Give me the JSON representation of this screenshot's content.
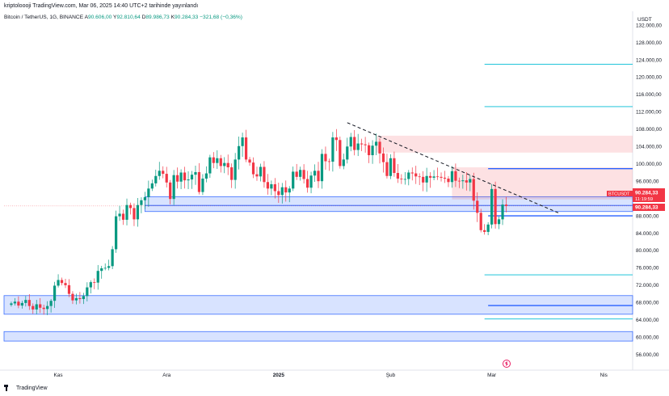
{
  "header": {
    "published_line": "kriptoloooji TradingView.com, Mar 06, 2025 14:40 UTC+2 tarihinde yayınlandı"
  },
  "symbol": {
    "name": "Bitcoin / TetherUS, 1G, BINANCE",
    "open_label": "A",
    "open": "90.606,00",
    "high_label": "Y",
    "high": "92.810,64",
    "low_label": "D",
    "low": "89.986,73",
    "close_label": "K",
    "close": "90.284,33",
    "change": "−321,68 (−0,36%)"
  },
  "axis": {
    "currency": "USDT"
  },
  "price_tags": {
    "ticker_label": "BTCUSDT",
    "ticker_price": "90.284,33",
    "countdown": "11:19:59",
    "last_price": "90.284,33"
  },
  "brand": {
    "name": "TradingView"
  },
  "colors": {
    "up": "#089981",
    "down": "#f23645",
    "zone_blue": "#2962ff",
    "zone_red": "#f23645",
    "line_cyan": "#00bcd4",
    "trend": "#131722"
  },
  "chart_data": {
    "type": "candlestick",
    "y_ticks": [
      56000,
      60000,
      64000,
      68000,
      72000,
      76000,
      80000,
      84000,
      88000,
      92000,
      96000,
      100000,
      104000,
      108000,
      112000,
      116000,
      120000,
      124000,
      128000,
      132000
    ],
    "y_tick_labels": [
      "56.000,00",
      "60.000,00",
      "64.000,00",
      "68.000,00",
      "72.000,00",
      "76.000,00",
      "80.000,00",
      "84.000,00",
      "88.000,00",
      "92.000,00",
      "96.000,00",
      "100.000,00",
      "104.000,00",
      "108.000,00",
      "112.000,00",
      "116.000,00",
      "120.000,00",
      "124.000,00",
      "128.000,00",
      "132.000,00"
    ],
    "ylim": [
      52400,
      135200
    ],
    "x_ticks": [
      {
        "label": "Kas",
        "date": "2024-11-01"
      },
      {
        "label": "Ara",
        "date": "2024-12-01"
      },
      {
        "label": "2025",
        "date": "2025-01-01"
      },
      {
        "label": "Şub",
        "date": "2025-02-01"
      },
      {
        "label": "Mar",
        "date": "2025-03-01"
      },
      {
        "label": "Nis",
        "date": "2025-04-01"
      }
    ],
    "xlim": [
      "2024-10-17",
      "2025-04-09"
    ],
    "closes": [
      67800,
      68200,
      67300,
      67900,
      68600,
      67200,
      66400,
      67600,
      66800,
      66500,
      67200,
      68400,
      71900,
      73200,
      72500,
      72000,
      70000,
      68500,
      69000,
      68800,
      69500,
      71500,
      72700,
      72600,
      75300,
      75900,
      76000,
      76400,
      80300,
      87900,
      88500,
      87100,
      90500,
      89800,
      87200,
      90500,
      91600,
      92300,
      94300,
      95500,
      97200,
      98400,
      97700,
      95700,
      91900,
      97400,
      95900,
      98000,
      96200,
      96400,
      97500,
      98100,
      93500,
      96600,
      97800,
      101500,
      100200,
      101300,
      99500,
      100200,
      99200,
      96300,
      101000,
      104100,
      106100,
      101000,
      100300,
      97600,
      97100,
      99300,
      95800,
      94300,
      95300,
      93700,
      92800,
      94600,
      93400,
      94300,
      98200,
      97000,
      98600,
      96500,
      94500,
      97300,
      98400,
      96000,
      102300,
      100600,
      100500,
      106100,
      105500,
      99500,
      101000,
      104000,
      106200,
      103200,
      104700,
      104500,
      104300,
      102000,
      104200,
      105100,
      102400,
      100400,
      97200,
      101300,
      97900,
      96600,
      96500,
      96500,
      98000,
      97800,
      97100,
      97000,
      95700,
      97200,
      96800,
      97100,
      97000,
      96800,
      96600,
      95800,
      98300,
      96100,
      96000,
      96200,
      95700,
      96500,
      91500,
      88700,
      84700,
      84300,
      86000,
      94200,
      86100,
      87200,
      90600,
      90300
    ],
    "trendline": [
      {
        "date": "2025-01-20",
        "price": 109500
      },
      {
        "date": "2025-03-20",
        "price": 88500
      }
    ],
    "zones": [
      {
        "kind": "support",
        "color": "blue",
        "from": "2024-11-25",
        "price_low": 90400,
        "price_high": 92400
      },
      {
        "kind": "support",
        "color": "blue",
        "from": "2024-11-25",
        "price_low": 89000,
        "price_high": 90400
      },
      {
        "kind": "resistance",
        "color": "red",
        "from": "2025-02-18",
        "price_low": 91800,
        "price_high": 99200
      },
      {
        "kind": "resistance",
        "color": "red",
        "from": "2025-01-28",
        "price_low": 102600,
        "price_high": 106500
      },
      {
        "kind": "support",
        "color": "blue",
        "from": "2024-10-17",
        "price_low": 65300,
        "price_high": 69600
      },
      {
        "kind": "support",
        "color": "blue",
        "from": "2024-10-17",
        "price_low": 59100,
        "price_high": 61300
      }
    ],
    "levels": [
      {
        "price": 123000,
        "color": "cyan"
      },
      {
        "price": 113200,
        "color": "cyan"
      },
      {
        "price": 98900,
        "color": "blue"
      },
      {
        "price": 88000,
        "color": "blue"
      },
      {
        "price": 74400,
        "color": "cyan"
      },
      {
        "price": 67300,
        "color": "blue"
      },
      {
        "price": 64200,
        "color": "cyan"
      }
    ]
  }
}
